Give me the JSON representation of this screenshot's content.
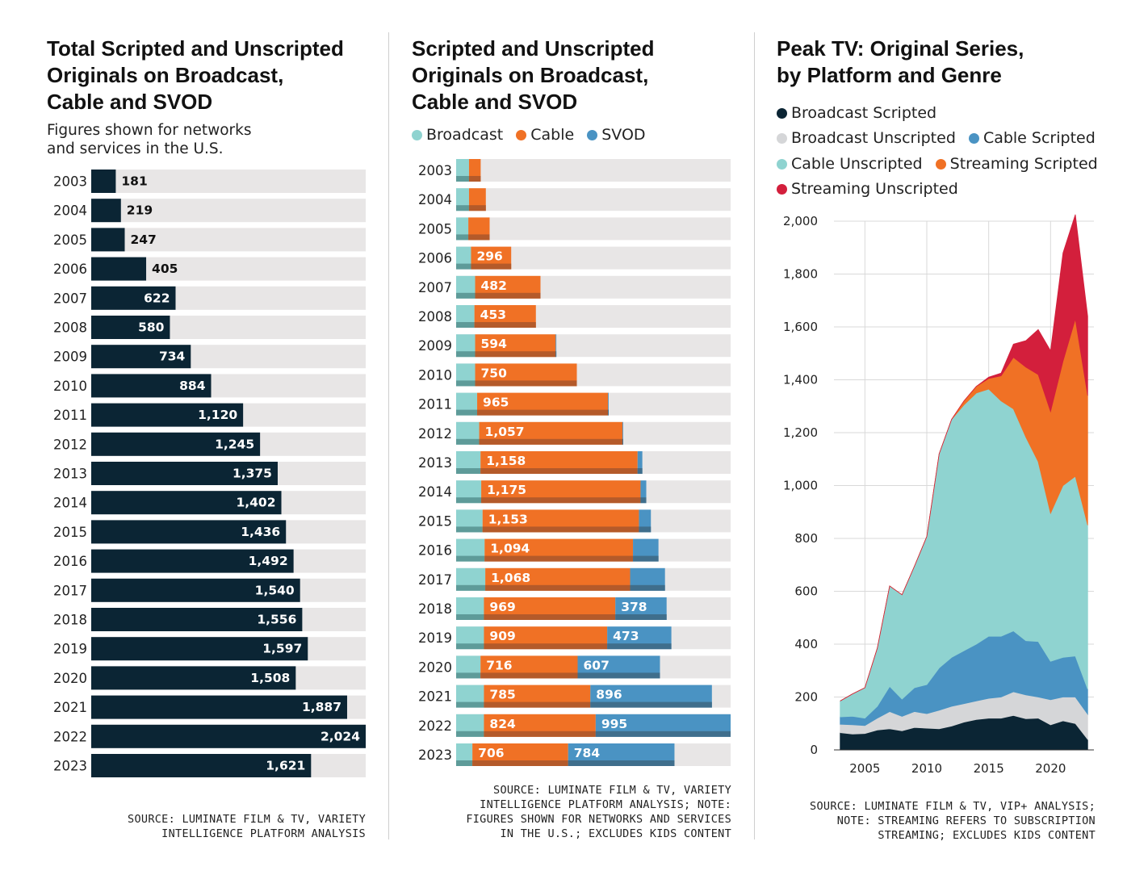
{
  "panels": {
    "left": {
      "title": "Total Scripted and Unscripted\nOriginals on Broadcast,\nCable and SVOD",
      "subtitle": "Figures shown for networks\nand services in the U.S.",
      "source": "SOURCE: LUMINATE FILM & TV, VARIETY\nINTELLIGENCE PLATFORM ANALYSIS"
    },
    "middle": {
      "title": "Scripted and Unscripted\nOriginals on Broadcast,\nCable and SVOD",
      "source": "SOURCE: LUMINATE FILM & TV, VARIETY\nINTELLIGENCE PLATFORM ANALYSIS; NOTE:\nFIGURES SHOWN FOR NETWORKS AND SERVICES\nIN THE U.S.; EXCLUDES KIDS CONTENT"
    },
    "right": {
      "title": "Peak TV: Original Series,\nby Platform and Genre",
      "source": "SOURCE: LUMINATE FILM & TV, VIP+ ANALYSIS;\nNOTE: STREAMING REFERS TO SUBSCRIPTION\nSTREAMING; EXCLUDES KIDS CONTENT"
    }
  },
  "colors": {
    "navy": "#0b2534",
    "track": "#e8e6e6",
    "broadcast": "#8fd3d0",
    "cable": "#f07125",
    "svod": "#4a93c3",
    "broadcast_unscripted": "#d5d6d8",
    "streaming_unscripted": "#d31f3c"
  },
  "chart_data": [
    {
      "type": "bar",
      "orientation": "horizontal",
      "title": "Total Scripted and Unscripted Originals on Broadcast, Cable and SVOD",
      "subtitle": "Figures shown for networks and services in the U.S.",
      "categories": [
        "2003",
        "2004",
        "2005",
        "2006",
        "2007",
        "2008",
        "2009",
        "2010",
        "2011",
        "2012",
        "2013",
        "2014",
        "2015",
        "2016",
        "2017",
        "2018",
        "2019",
        "2020",
        "2021",
        "2022",
        "2023"
      ],
      "values": [
        181,
        219,
        247,
        405,
        622,
        580,
        734,
        884,
        1120,
        1245,
        1375,
        1402,
        1436,
        1492,
        1540,
        1556,
        1597,
        1508,
        1887,
        2024,
        1621
      ],
      "labels": [
        "181",
        "219",
        "247",
        "405",
        "622",
        "580",
        "734",
        "884",
        "1,120",
        "1,245",
        "1,375",
        "1,402",
        "1,436",
        "1,492",
        "1,540",
        "1,556",
        "1,597",
        "1,508",
        "1,887",
        "2,024",
        "1,621"
      ],
      "xlim": [
        0,
        2024
      ]
    },
    {
      "type": "bar",
      "orientation": "horizontal",
      "stacked": true,
      "title": "Scripted and Unscripted Originals on Broadcast, Cable and SVOD",
      "categories": [
        "2003",
        "2004",
        "2005",
        "2006",
        "2007",
        "2008",
        "2009",
        "2010",
        "2011",
        "2012",
        "2013",
        "2014",
        "2015",
        "2016",
        "2017",
        "2018",
        "2019",
        "2020",
        "2021",
        "2022",
        "2023"
      ],
      "series": [
        {
          "name": "Broadcast",
          "values": [
            95,
            95,
            90,
            110,
            140,
            135,
            140,
            140,
            155,
            170,
            180,
            185,
            195,
            210,
            215,
            205,
            205,
            180,
            205,
            205,
            120
          ]
        },
        {
          "name": "Cable",
          "values": [
            86,
            124,
            157,
            296,
            482,
            453,
            594,
            750,
            965,
            1057,
            1158,
            1175,
            1153,
            1094,
            1068,
            969,
            909,
            716,
            785,
            824,
            706
          ]
        },
        {
          "name": "SVOD",
          "values": [
            0,
            0,
            0,
            0,
            0,
            0,
            5,
            0,
            5,
            5,
            35,
            42,
            88,
            188,
            257,
            378,
            473,
            607,
            896,
            995,
            784
          ]
        }
      ],
      "value_labels": {
        "Cable": [
          "",
          "",
          "",
          "296",
          "482",
          "453",
          "594",
          "750",
          "965",
          "1,057",
          "1,158",
          "1,175",
          "1,153",
          "1,094",
          "1,068",
          "969",
          "909",
          "716",
          "785",
          "824",
          "706"
        ],
        "SVOD": [
          "",
          "",
          "",
          "",
          "",
          "",
          "",
          "",
          "",
          "",
          "",
          "",
          "",
          "",
          "",
          "378",
          "473",
          "607",
          "896",
          "995",
          "784"
        ]
      },
      "xlim": [
        0,
        2024
      ]
    },
    {
      "type": "area",
      "stacked": true,
      "title": "Peak TV: Original Series, by Platform and Genre",
      "x": [
        2003,
        2004,
        2005,
        2006,
        2007,
        2008,
        2009,
        2010,
        2011,
        2012,
        2013,
        2014,
        2015,
        2016,
        2017,
        2018,
        2019,
        2020,
        2021,
        2022,
        2023
      ],
      "series": [
        {
          "name": "Broadcast Scripted",
          "values": [
            65,
            60,
            62,
            75,
            80,
            72,
            85,
            82,
            80,
            90,
            105,
            115,
            120,
            120,
            130,
            118,
            120,
            95,
            110,
            100,
            40
          ]
        },
        {
          "name": "Broadcast Unscripted",
          "values": [
            32,
            35,
            30,
            45,
            65,
            55,
            60,
            55,
            70,
            75,
            70,
            70,
            75,
            80,
            90,
            90,
            80,
            95,
            90,
            100,
            95
          ]
        },
        {
          "name": "Cable Scripted",
          "values": [
            28,
            32,
            28,
            45,
            95,
            65,
            90,
            110,
            160,
            185,
            200,
            215,
            235,
            230,
            230,
            205,
            210,
            145,
            150,
            155,
            95
          ]
        },
        {
          "name": "Cable Unscripted",
          "values": [
            60,
            85,
            115,
            220,
            380,
            395,
            460,
            560,
            810,
            900,
            930,
            950,
            935,
            890,
            840,
            770,
            680,
            560,
            650,
            680,
            620
          ]
        },
        {
          "name": "Streaming Scripted",
          "values": [
            0,
            0,
            0,
            0,
            0,
            0,
            0,
            0,
            0,
            0,
            15,
            25,
            40,
            95,
            195,
            265,
            330,
            385,
            470,
            595,
            490
          ]
        },
        {
          "name": "Streaming Unscripted",
          "values": [
            0,
            0,
            0,
            0,
            0,
            0,
            0,
            0,
            0,
            0,
            0,
            0,
            5,
            10,
            50,
            100,
            170,
            230,
            410,
            395,
            300
          ]
        }
      ],
      "xlim": [
        2002.5,
        2023.5
      ],
      "ylim": [
        0,
        2000
      ],
      "yticks": [
        "0",
        "200",
        "400",
        "600",
        "800",
        "1,000",
        "1,200",
        "1,400",
        "1,600",
        "1,800",
        "2,000"
      ],
      "xticks": [
        "2005",
        "2010",
        "2015",
        "2020"
      ],
      "grid": true,
      "legend_position": "top"
    }
  ]
}
